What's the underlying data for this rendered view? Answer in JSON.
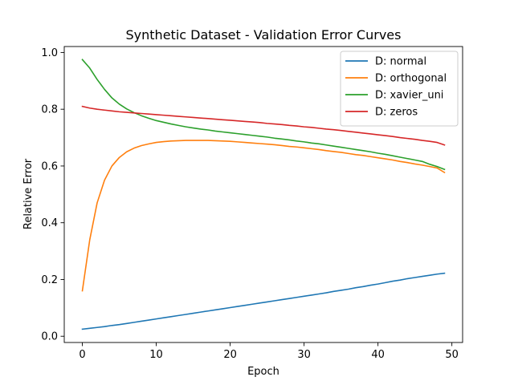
{
  "chart_data": {
    "type": "line",
    "title": "Synthetic Dataset - Validation Error Curves",
    "xlabel": "Epoch",
    "ylabel": "Relative Error",
    "xlim": [
      -2.45,
      51.45
    ],
    "ylim": [
      -0.022,
      1.021
    ],
    "xticks": [
      0,
      10,
      20,
      30,
      40,
      50
    ],
    "yticks": [
      0.0,
      0.2,
      0.4,
      0.6,
      0.8,
      1.0
    ],
    "grid": false,
    "legend_position": "top-right",
    "series": [
      {
        "name": "D: normal",
        "color": "#1f77b4",
        "x": [
          0,
          1,
          2,
          3,
          4,
          5,
          6,
          7,
          8,
          9,
          10,
          11,
          12,
          13,
          14,
          15,
          16,
          17,
          18,
          19,
          20,
          21,
          22,
          23,
          24,
          25,
          26,
          27,
          28,
          29,
          30,
          31,
          32,
          33,
          34,
          35,
          36,
          37,
          38,
          39,
          40,
          41,
          42,
          43,
          44,
          45,
          46,
          47,
          48,
          49
        ],
        "y": [
          0.025,
          0.028,
          0.031,
          0.034,
          0.038,
          0.041,
          0.045,
          0.049,
          0.053,
          0.057,
          0.061,
          0.065,
          0.069,
          0.073,
          0.077,
          0.081,
          0.085,
          0.089,
          0.093,
          0.097,
          0.101,
          0.105,
          0.109,
          0.113,
          0.117,
          0.121,
          0.125,
          0.129,
          0.133,
          0.137,
          0.141,
          0.145,
          0.149,
          0.153,
          0.158,
          0.162,
          0.166,
          0.171,
          0.175,
          0.18,
          0.184,
          0.189,
          0.194,
          0.198,
          0.203,
          0.207,
          0.211,
          0.215,
          0.219,
          0.222
        ]
      },
      {
        "name": "D: orthogonal",
        "color": "#ff7f0e",
        "x": [
          0,
          1,
          2,
          3,
          4,
          5,
          6,
          7,
          8,
          9,
          10,
          11,
          12,
          13,
          14,
          15,
          16,
          17,
          18,
          19,
          20,
          21,
          22,
          23,
          24,
          25,
          26,
          27,
          28,
          29,
          30,
          31,
          32,
          33,
          34,
          35,
          36,
          37,
          38,
          39,
          40,
          41,
          42,
          43,
          44,
          45,
          46,
          47,
          48,
          49
        ],
        "y": [
          0.16,
          0.34,
          0.47,
          0.55,
          0.6,
          0.63,
          0.65,
          0.663,
          0.672,
          0.678,
          0.683,
          0.686,
          0.688,
          0.689,
          0.69,
          0.69,
          0.69,
          0.69,
          0.689,
          0.688,
          0.687,
          0.685,
          0.683,
          0.681,
          0.679,
          0.677,
          0.675,
          0.672,
          0.669,
          0.667,
          0.664,
          0.661,
          0.658,
          0.654,
          0.651,
          0.648,
          0.644,
          0.64,
          0.637,
          0.633,
          0.629,
          0.625,
          0.621,
          0.616,
          0.612,
          0.607,
          0.603,
          0.598,
          0.593,
          0.577
        ]
      },
      {
        "name": "D: xavier_uni",
        "color": "#2ca02c",
        "x": [
          0,
          1,
          2,
          3,
          4,
          5,
          6,
          7,
          8,
          9,
          10,
          11,
          12,
          13,
          14,
          15,
          16,
          17,
          18,
          19,
          20,
          21,
          22,
          23,
          24,
          25,
          26,
          27,
          28,
          29,
          30,
          31,
          32,
          33,
          34,
          35,
          36,
          37,
          38,
          39,
          40,
          41,
          42,
          43,
          44,
          45,
          46,
          47,
          48,
          49
        ],
        "y": [
          0.975,
          0.945,
          0.905,
          0.87,
          0.84,
          0.818,
          0.801,
          0.788,
          0.777,
          0.768,
          0.76,
          0.754,
          0.748,
          0.743,
          0.738,
          0.734,
          0.73,
          0.727,
          0.723,
          0.72,
          0.717,
          0.714,
          0.711,
          0.708,
          0.705,
          0.702,
          0.698,
          0.695,
          0.692,
          0.688,
          0.685,
          0.681,
          0.678,
          0.674,
          0.67,
          0.666,
          0.662,
          0.658,
          0.654,
          0.65,
          0.645,
          0.641,
          0.636,
          0.631,
          0.626,
          0.621,
          0.616,
          0.606,
          0.598,
          0.588
        ]
      },
      {
        "name": "D: zeros",
        "color": "#d62728",
        "x": [
          0,
          1,
          2,
          3,
          4,
          5,
          6,
          7,
          8,
          9,
          10,
          11,
          12,
          13,
          14,
          15,
          16,
          17,
          18,
          19,
          20,
          21,
          22,
          23,
          24,
          25,
          26,
          27,
          28,
          29,
          30,
          31,
          32,
          33,
          34,
          35,
          36,
          37,
          38,
          39,
          40,
          41,
          42,
          43,
          44,
          45,
          46,
          47,
          48,
          49
        ],
        "y": [
          0.81,
          0.804,
          0.8,
          0.797,
          0.794,
          0.791,
          0.789,
          0.787,
          0.785,
          0.783,
          0.781,
          0.779,
          0.777,
          0.775,
          0.773,
          0.771,
          0.769,
          0.767,
          0.765,
          0.763,
          0.761,
          0.759,
          0.757,
          0.755,
          0.753,
          0.75,
          0.748,
          0.746,
          0.743,
          0.741,
          0.738,
          0.736,
          0.733,
          0.73,
          0.728,
          0.725,
          0.722,
          0.719,
          0.716,
          0.713,
          0.71,
          0.707,
          0.704,
          0.7,
          0.697,
          0.694,
          0.69,
          0.687,
          0.683,
          0.674
        ]
      }
    ]
  }
}
